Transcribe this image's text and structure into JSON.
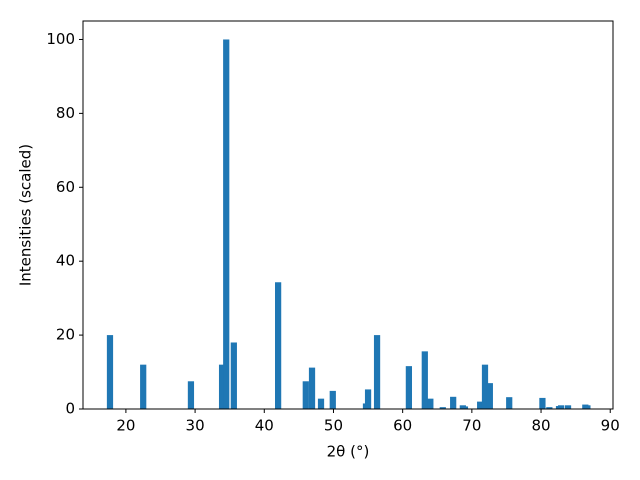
{
  "chart_data": {
    "type": "bar",
    "x_label": "2θ (°)",
    "y_label": "Intensities (scaled)",
    "color": "#1f77b4",
    "x": [
      17.7,
      22.5,
      29.4,
      33.9,
      34.5,
      35.6,
      42.0,
      46.0,
      46.9,
      48.2,
      49.9,
      54.7,
      55.0,
      56.3,
      60.9,
      63.2,
      64.0,
      65.8,
      67.3,
      68.7,
      69.0,
      71.2,
      71.9,
      72.6,
      75.4,
      80.2,
      81.2,
      82.6,
      82.9,
      83.9,
      86.4,
      86.7
    ],
    "values": [
      20,
      12,
      7.5,
      12,
      100,
      18,
      34.3,
      7.5,
      11.2,
      2.8,
      4.9,
      1.5,
      5.3,
      20,
      11.6,
      15.6,
      2.8,
      0.5,
      3.3,
      1.0,
      0.7,
      2.0,
      12.0,
      7.0,
      3.2,
      3.0,
      0.5,
      0.8,
      1.0,
      1.0,
      1.2,
      1.0
    ],
    "xlim": [
      13.8,
      90.4
    ],
    "xticks": [
      20,
      30,
      40,
      50,
      60,
      70,
      80,
      90
    ],
    "ylim": [
      0,
      105
    ],
    "yticks": [
      0,
      20,
      40,
      60,
      80,
      100
    ]
  }
}
